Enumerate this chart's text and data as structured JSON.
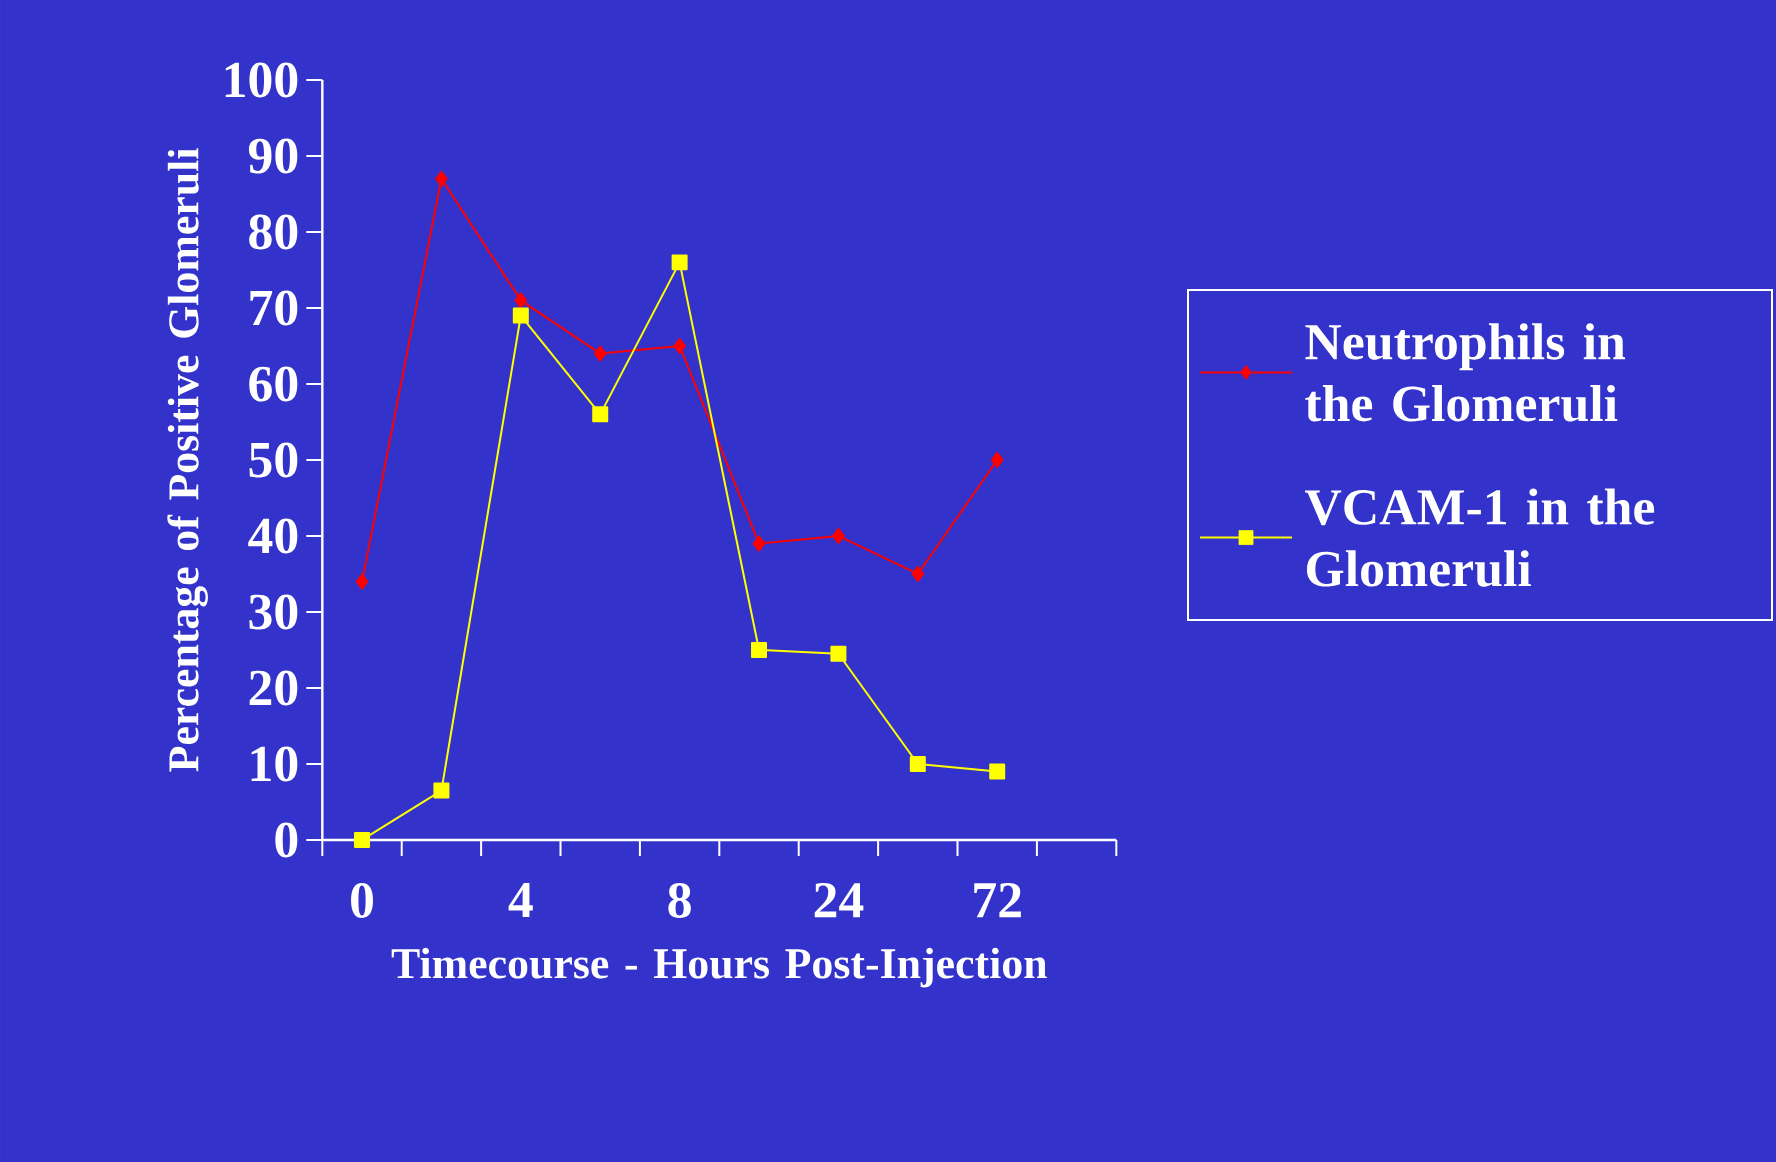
{
  "chart_data": {
    "type": "line",
    "xlabel": "Timecourse - Hours Post-Injection",
    "ylabel": "Percentage of Positive Glomeruli",
    "categories": [
      "0",
      null,
      "4",
      null,
      "8",
      null,
      "24",
      null,
      "72",
      null
    ],
    "series": [
      {
        "name": "Neutrophils in the Glomeruli",
        "color": "#ff0000",
        "marker": "diamond",
        "values": [
          34,
          87,
          71,
          64,
          65,
          39,
          40,
          35,
          50,
          null
        ]
      },
      {
        "name": "VCAM-1 in the Glomeruli",
        "color": "#ffff00",
        "marker": "square",
        "values": [
          0,
          6.5,
          69,
          56,
          76,
          25,
          24.5,
          10,
          9,
          null
        ]
      }
    ],
    "ylim": [
      0,
      100
    ],
    "yticks": [
      0,
      10,
      20,
      30,
      40,
      50,
      60,
      70,
      80,
      90,
      100
    ],
    "legend": "right",
    "grid": false
  }
}
